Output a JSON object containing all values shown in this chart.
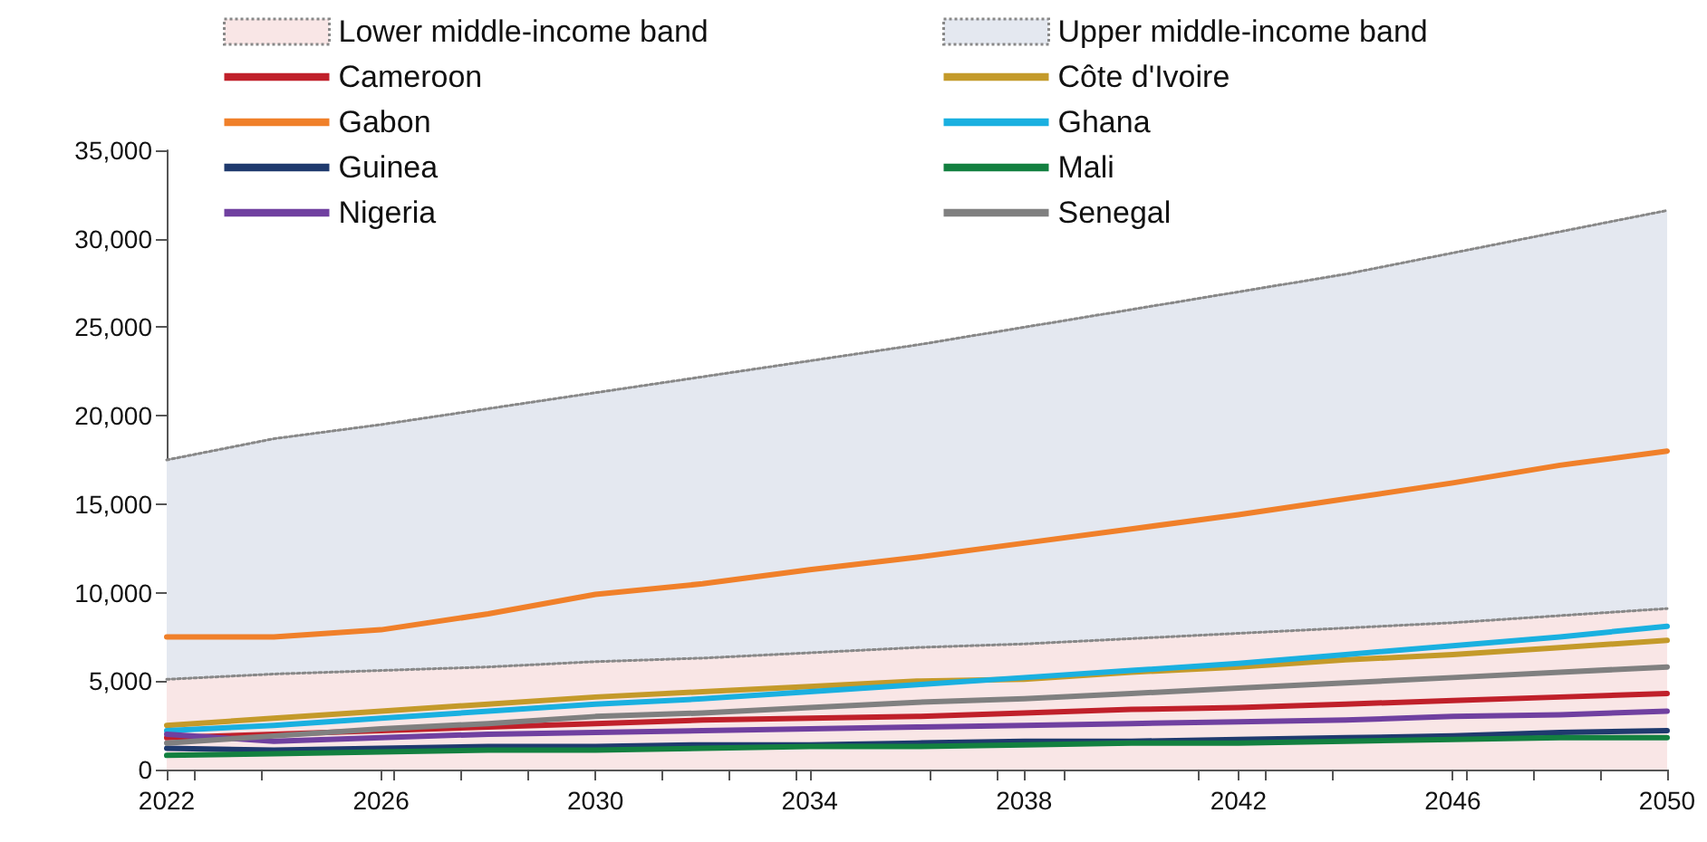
{
  "chart_data": {
    "type": "line",
    "x": [
      2022,
      2024,
      2026,
      2028,
      2030,
      2032,
      2034,
      2036,
      2038,
      2040,
      2042,
      2044,
      2046,
      2048,
      2050
    ],
    "series": [
      {
        "name": "Lower middle-income band",
        "type": "area",
        "color": "#f9e6e6",
        "line_style": "dotted",
        "values": [
          5100,
          5400,
          5600,
          5800,
          6100,
          6300,
          6600,
          6900,
          7100,
          7400,
          7700,
          8000,
          8300,
          8700,
          9100
        ]
      },
      {
        "name": "Upper middle-income band",
        "type": "area",
        "color": "#e4e8f0",
        "line_style": "dotted",
        "values": [
          17500,
          18700,
          19500,
          20400,
          21300,
          22200,
          23100,
          24000,
          25000,
          26000,
          27000,
          28000,
          29200,
          30400,
          31600
        ]
      },
      {
        "name": "Cameroon",
        "color": "#c0202a",
        "values": [
          1800,
          2000,
          2200,
          2400,
          2600,
          2800,
          2900,
          3000,
          3200,
          3400,
          3500,
          3700,
          3900,
          4100,
          4300
        ]
      },
      {
        "name": "Côte d'Ivoire",
        "color": "#c49a2a",
        "values": [
          2500,
          2900,
          3300,
          3700,
          4100,
          4400,
          4700,
          5000,
          5100,
          5500,
          5800,
          6200,
          6500,
          6900,
          7300
        ]
      },
      {
        "name": "Gabon",
        "color": "#f0802a",
        "values": [
          7500,
          7500,
          7900,
          8800,
          9900,
          10500,
          11300,
          12000,
          12800,
          13600,
          14400,
          15300,
          16200,
          17200,
          18000
        ]
      },
      {
        "name": "Ghana",
        "color": "#1ab0e0",
        "values": [
          2200,
          2500,
          2900,
          3300,
          3700,
          4000,
          4400,
          4800,
          5200,
          5600,
          6000,
          6500,
          7000,
          7500,
          8100
        ]
      },
      {
        "name": "Guinea",
        "color": "#1f3a6e",
        "values": [
          1200,
          1100,
          1200,
          1300,
          1300,
          1400,
          1400,
          1500,
          1600,
          1600,
          1700,
          1800,
          1900,
          2100,
          2200
        ]
      },
      {
        "name": "Mali",
        "color": "#138040",
        "values": [
          800,
          900,
          1000,
          1100,
          1100,
          1200,
          1300,
          1300,
          1400,
          1500,
          1500,
          1600,
          1700,
          1800,
          1800
        ]
      },
      {
        "name": "Nigeria",
        "color": "#7040a0",
        "values": [
          2000,
          1600,
          1800,
          2000,
          2100,
          2200,
          2300,
          2400,
          2500,
          2600,
          2700,
          2800,
          3000,
          3100,
          3300
        ]
      },
      {
        "name": "Senegal",
        "color": "#808080",
        "values": [
          1500,
          1900,
          2300,
          2600,
          3000,
          3200,
          3500,
          3800,
          4000,
          4300,
          4600,
          4900,
          5200,
          5500,
          5800
        ]
      }
    ],
    "xlim": [
      2022,
      2050
    ],
    "xticks": [
      2022,
      2026,
      2030,
      2034,
      2038,
      2042,
      2046,
      2050
    ],
    "ylim": [
      0,
      35000
    ],
    "yticks": [
      {
        "value": 0,
        "label": "0"
      },
      {
        "value": 5000,
        "label": "5,000"
      },
      {
        "value": 10000,
        "label": "10,000"
      },
      {
        "value": 15000,
        "label": "15,000"
      },
      {
        "value": 20000,
        "label": "20,000"
      },
      {
        "value": 25000,
        "label": "25,000"
      },
      {
        "value": 30000,
        "label": "30,000"
      },
      {
        "value": 35000,
        "label": "35,000"
      }
    ],
    "grid": false,
    "legend": "top",
    "marker": "none",
    "line_style": "solid"
  }
}
